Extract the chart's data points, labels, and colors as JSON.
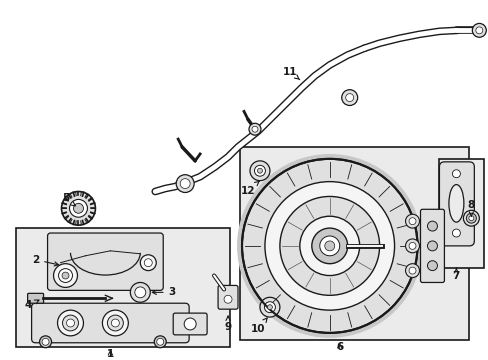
{
  "bg_color": "#ffffff",
  "line_color": "#1a1a1a",
  "fill_light": "#f5f5f5",
  "fill_mid": "#e0e0e0",
  "fill_dark": "#c8c8c8",
  "fill_box": "#ebebeb"
}
